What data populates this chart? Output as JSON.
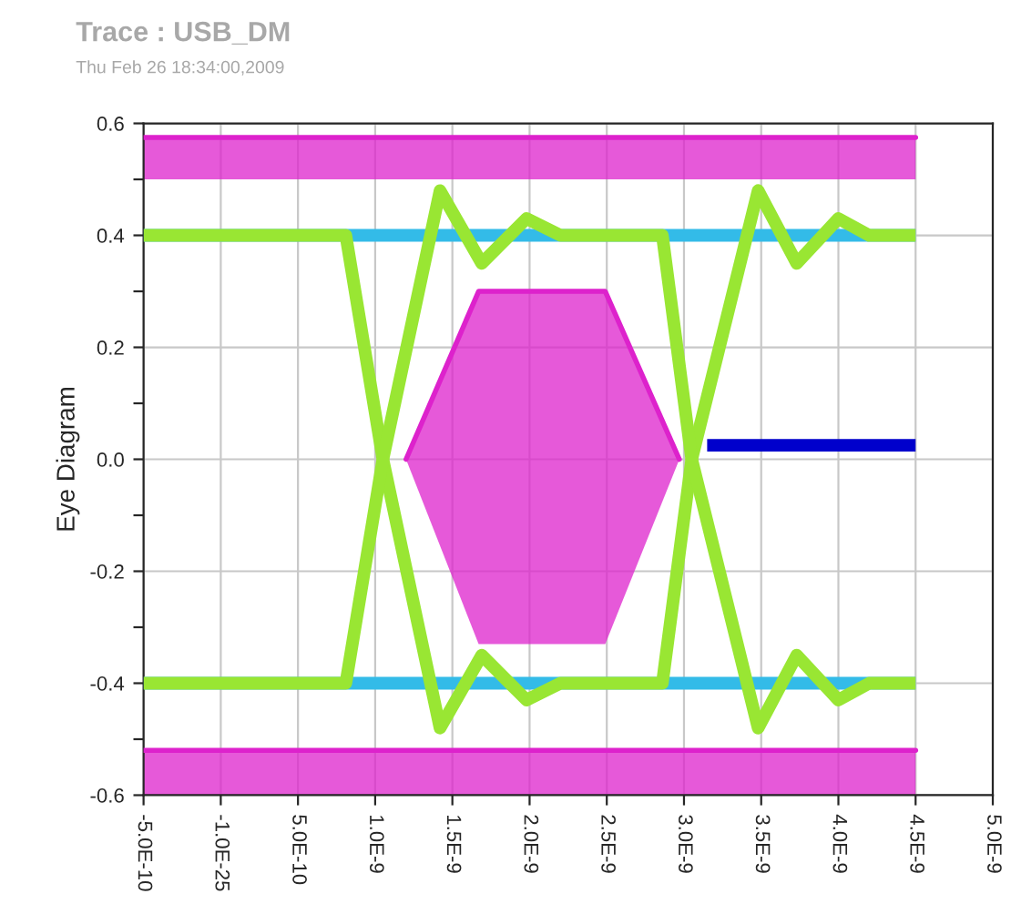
{
  "chart_data": {
    "type": "line",
    "title": "Trace : USB_DM",
    "subtitle": "Thu Feb 26 18:34:00,2009",
    "ylabel": "Eye Diagram",
    "series": [
      {
        "type": "line",
        "color": "#dd22cc",
        "x": [
          -5e-10,
          4.5e-09
        ],
        "lower": [
          0.5,
          0.5
        ],
        "upper": [
          0.575,
          0.575
        ],
        "values": [
          0.575,
          0.575
        ]
      },
      {
        "type": "line",
        "color": "#dd22cc",
        "x": [
          -5e-10,
          4.5e-09
        ],
        "lower": [
          -0.6,
          -0.6
        ],
        "upper": [
          -0.52,
          -0.52
        ],
        "values": [
          -0.52,
          -0.52
        ]
      },
      {
        "type": "line",
        "color": "#dd22cc",
        "x": [
          1.2e-09,
          1.67e-09,
          2.49e-09,
          2.97e-09
        ],
        "lower": [
          0.0,
          -0.33,
          -0.33,
          0.0
        ],
        "upper": [
          0.0,
          0.3,
          0.3,
          0.0
        ],
        "values": [
          0.0,
          0.3,
          0.3,
          0.0
        ]
      },
      {
        "color": "#33bbe8",
        "x": [
          -5e-10,
          4.5e-09
        ],
        "values": [
          0.4,
          0.4
        ]
      },
      {
        "color": "#33bbe8",
        "x": [
          -5e-10,
          4.5e-09
        ],
        "values": [
          -0.4,
          -0.4
        ]
      },
      {
        "color": "#0000cc",
        "x": [
          3.15e-09,
          4.5e-09
        ],
        "values": [
          0.025,
          0.025
        ]
      },
      {
        "color": "#99e633",
        "x": [
          -5e-10,
          8.1e-10,
          1.05e-09,
          1.42e-09,
          1.69e-09,
          1.98e-09,
          2.2e-09,
          2.86e-09,
          3.05e-09,
          3.48e-09,
          3.73e-09,
          4e-09,
          4.2e-09,
          4.5e-09
        ],
        "values": [
          0.4,
          0.4,
          0.0,
          -0.48,
          -0.35,
          -0.43,
          -0.4,
          -0.4,
          0.0,
          0.48,
          0.35,
          0.43,
          0.4,
          0.4
        ]
      },
      {
        "color": "#99e633",
        "x": [
          -5e-10,
          8.1e-10,
          1.05e-09,
          1.42e-09,
          1.69e-09,
          1.98e-09,
          2.2e-09,
          2.86e-09,
          3.05e-09,
          3.48e-09,
          3.73e-09,
          4e-09,
          4.2e-09,
          4.5e-09
        ],
        "values": [
          -0.4,
          -0.4,
          0.0,
          0.48,
          0.35,
          0.43,
          0.4,
          0.4,
          0.0,
          -0.48,
          -0.35,
          -0.43,
          -0.4,
          -0.4
        ]
      }
    ],
    "xlim": [
      -5e-10,
      5e-09
    ],
    "xticks": [
      {
        "value": -5e-10,
        "label": "-5.0E-10"
      },
      {
        "value": 0,
        "label": "-1.0E-25"
      },
      {
        "value": 5e-10,
        "label": "5.0E-10"
      },
      {
        "value": 1e-09,
        "label": "1.0E-9"
      },
      {
        "value": 1.5e-09,
        "label": "1.5E-9"
      },
      {
        "value": 2e-09,
        "label": "2.0E-9"
      },
      {
        "value": 2.5e-09,
        "label": "2.5E-9"
      },
      {
        "value": 3e-09,
        "label": "3.0E-9"
      },
      {
        "value": 3.5e-09,
        "label": "3.5E-9"
      },
      {
        "value": 4e-09,
        "label": "4.0E-9"
      },
      {
        "value": 4.5e-09,
        "label": "4.5E-9"
      },
      {
        "value": 5e-09,
        "label": "5.0E-9"
      }
    ],
    "ylim": [
      -0.6,
      0.6
    ],
    "yticks": [
      {
        "value": -0.6,
        "label": "-0.6"
      },
      {
        "value": -0.5,
        "label": null
      },
      {
        "value": -0.4,
        "label": "-0.4"
      },
      {
        "value": -0.3,
        "label": null
      },
      {
        "value": -0.2,
        "label": "-0.2"
      },
      {
        "value": -0.1,
        "label": null
      },
      {
        "value": 0,
        "label": "0.0"
      },
      {
        "value": 0.1,
        "label": null
      },
      {
        "value": 0.2,
        "label": "0.2"
      },
      {
        "value": 0.3,
        "label": null
      },
      {
        "value": 0.4,
        "label": "0.4"
      },
      {
        "value": 0.5,
        "label": null
      },
      {
        "value": 0.6,
        "label": "0.6"
      }
    ],
    "grid": true,
    "legend": false
  }
}
